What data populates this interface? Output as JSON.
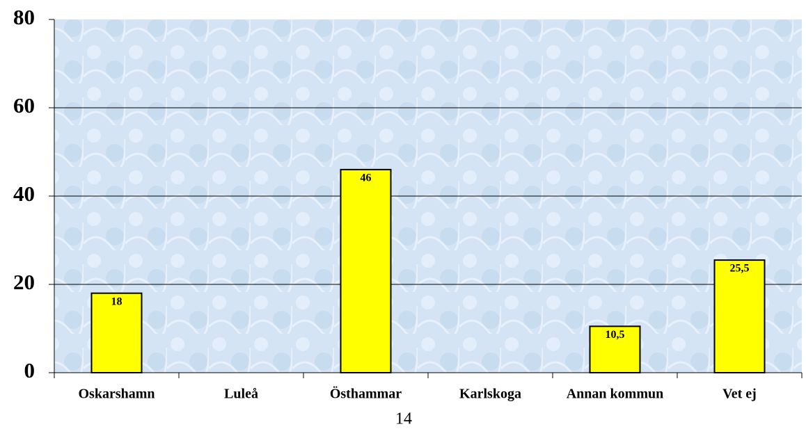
{
  "chart_data": {
    "type": "bar",
    "categories": [
      "Oskarshamn",
      "Luleå",
      "Östhammar",
      "Karlskoga",
      "Annan kommun",
      "Vet ej"
    ],
    "values": [
      18,
      null,
      46,
      null,
      10.5,
      25.5
    ],
    "value_labels": [
      "18",
      null,
      "46",
      null,
      "10,5",
      "25,5"
    ],
    "color": "#ffff00",
    "ylim": [
      0,
      80
    ],
    "yticks": [
      0,
      20,
      40,
      60,
      80
    ],
    "grid": true
  },
  "page_number": "14"
}
